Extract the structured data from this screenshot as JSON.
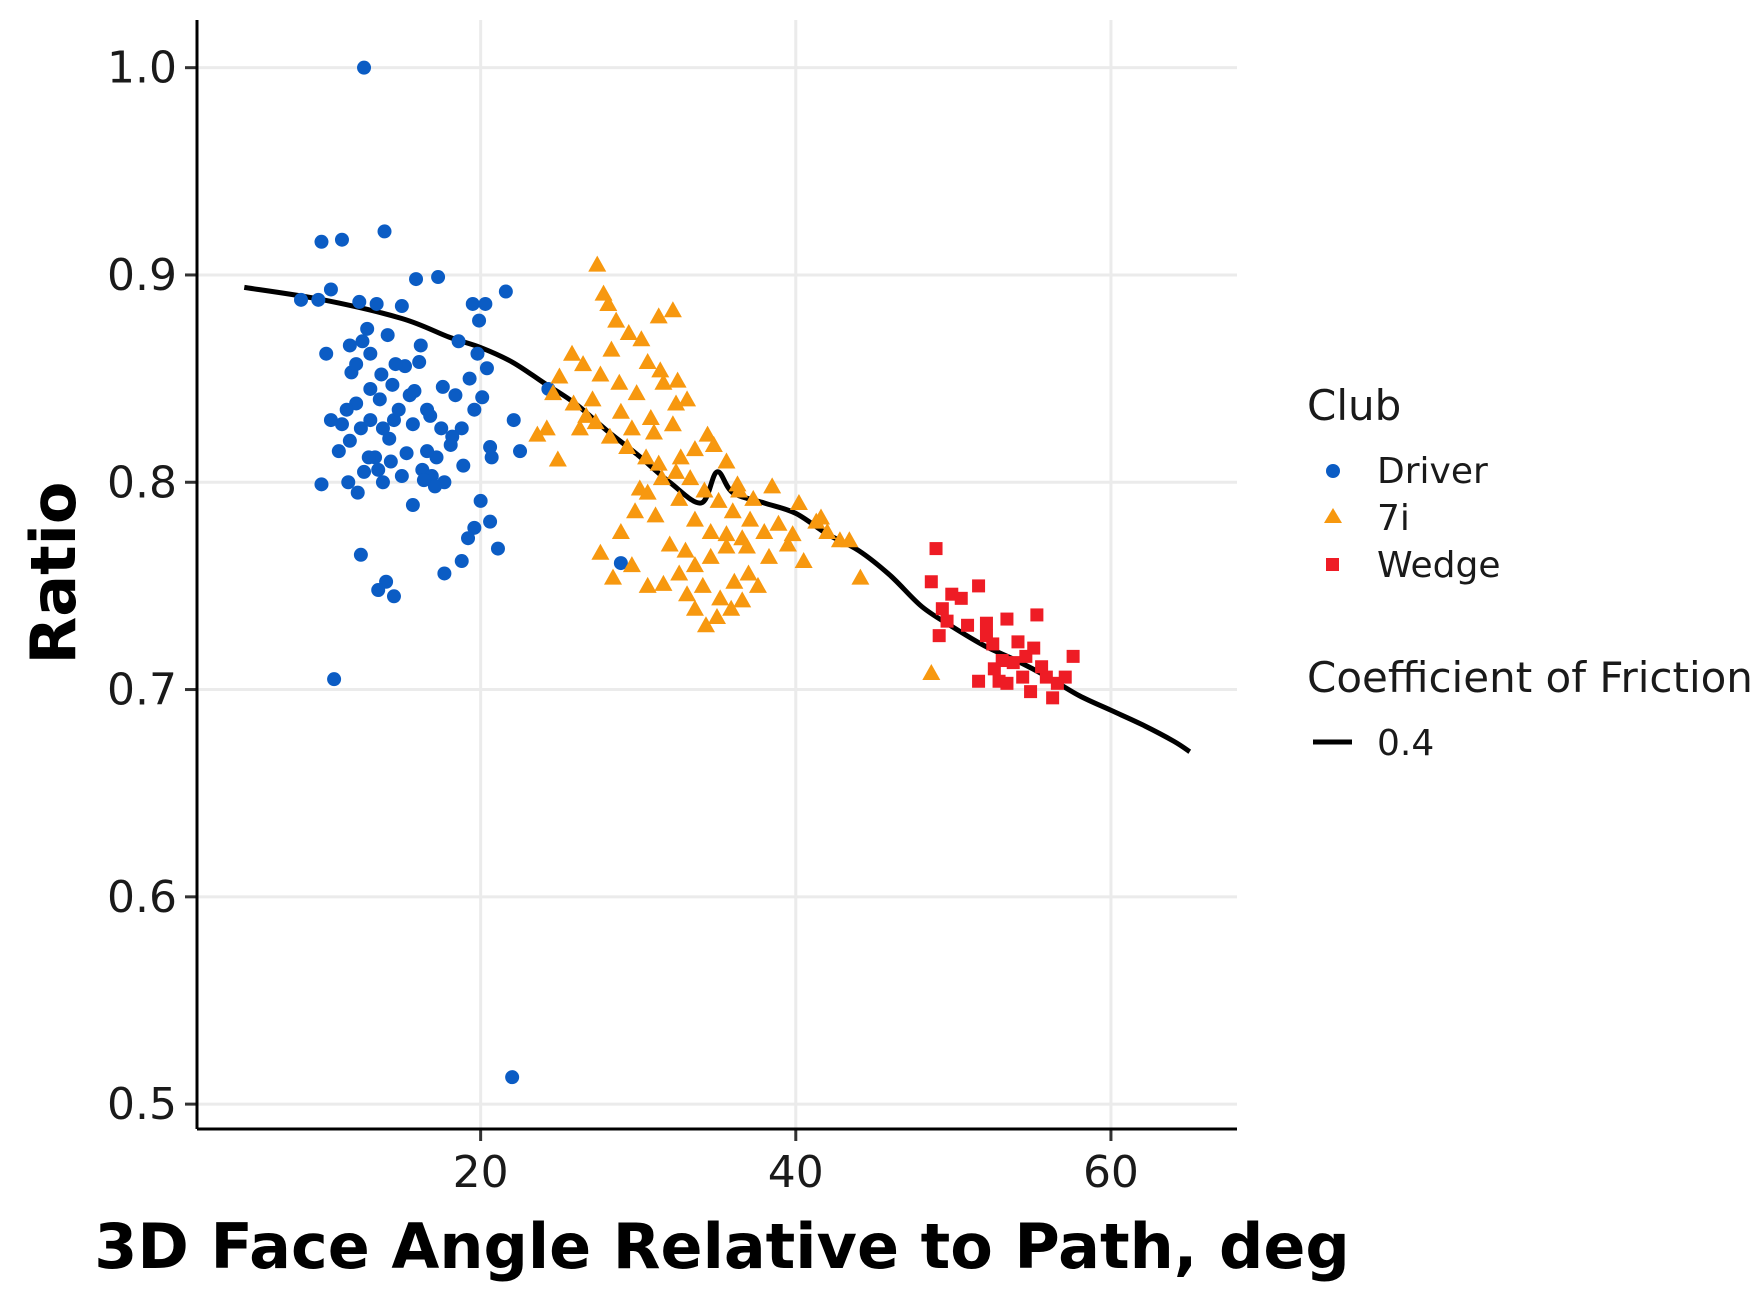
{
  "chart_data": {
    "type": "scatter",
    "title": "",
    "xlabel": "3D Face Angle Relative to Path, deg",
    "ylabel": "Ratio",
    "xlim": [
      2,
      68
    ],
    "ylim": [
      0.488,
      1.023
    ],
    "x_ticks": [
      20,
      40,
      60
    ],
    "x_tick_labels": [
      "20",
      "40",
      "60"
    ],
    "y_ticks": [
      0.5,
      0.6,
      0.7,
      0.8,
      0.9,
      1.0
    ],
    "y_tick_labels": [
      "0.5",
      "0.6",
      "0.7",
      "0.8",
      "0.9",
      "1.0"
    ],
    "grid": true,
    "legend_position": "right",
    "legend": {
      "club_title": "Club",
      "club_entries": [
        "Driver",
        "7i",
        "Wedge"
      ],
      "line_title": "Coefficient of Friction",
      "line_entries": [
        "0.4"
      ]
    },
    "colors": {
      "Driver": "#0b5cc4",
      "7i": "#f7980f",
      "Wedge": "#ee1c25",
      "line": "#000000"
    },
    "series": [
      {
        "name": "Driver",
        "marker": "circle",
        "points": [
          [
            12.6,
            1.0
          ],
          [
            9.9,
            0.916
          ],
          [
            11.2,
            0.917
          ],
          [
            13.9,
            0.921
          ],
          [
            8.6,
            0.888
          ],
          [
            10.5,
            0.893
          ],
          [
            9.7,
            0.888
          ],
          [
            12.3,
            0.887
          ],
          [
            13.4,
            0.886
          ],
          [
            12.8,
            0.874
          ],
          [
            11.7,
            0.866
          ],
          [
            12.5,
            0.868
          ],
          [
            13.0,
            0.862
          ],
          [
            14.1,
            0.871
          ],
          [
            13.7,
            0.852
          ],
          [
            15.2,
            0.856
          ],
          [
            16.1,
            0.858
          ],
          [
            15.9,
            0.898
          ],
          [
            17.3,
            0.899
          ],
          [
            15.0,
            0.885
          ],
          [
            11.8,
            0.853
          ],
          [
            12.1,
            0.838
          ],
          [
            13.0,
            0.845
          ],
          [
            13.6,
            0.84
          ],
          [
            14.4,
            0.847
          ],
          [
            15.5,
            0.842
          ],
          [
            16.6,
            0.835
          ],
          [
            17.6,
            0.846
          ],
          [
            18.6,
            0.868
          ],
          [
            19.5,
            0.886
          ],
          [
            20.3,
            0.886
          ],
          [
            19.9,
            0.878
          ],
          [
            21.6,
            0.892
          ],
          [
            19.3,
            0.85
          ],
          [
            19.8,
            0.862
          ],
          [
            20.4,
            0.855
          ],
          [
            20.1,
            0.841
          ],
          [
            18.8,
            0.826
          ],
          [
            18.1,
            0.818
          ],
          [
            17.2,
            0.812
          ],
          [
            16.3,
            0.806
          ],
          [
            15.3,
            0.814
          ],
          [
            14.2,
            0.821
          ],
          [
            13.3,
            0.812
          ],
          [
            12.6,
            0.805
          ],
          [
            11.7,
            0.82
          ],
          [
            11.2,
            0.828
          ],
          [
            10.5,
            0.83
          ],
          [
            11.5,
            0.835
          ],
          [
            12.4,
            0.826
          ],
          [
            13.8,
            0.826
          ],
          [
            14.5,
            0.83
          ],
          [
            15.7,
            0.828
          ],
          [
            16.8,
            0.832
          ],
          [
            17.5,
            0.826
          ],
          [
            18.2,
            0.822
          ],
          [
            18.9,
            0.808
          ],
          [
            16.9,
            0.803
          ],
          [
            17.7,
            0.8
          ],
          [
            17.1,
            0.798
          ],
          [
            16.4,
            0.801
          ],
          [
            15.7,
            0.789
          ],
          [
            15.0,
            0.803
          ],
          [
            14.3,
            0.81
          ],
          [
            13.5,
            0.806
          ],
          [
            12.9,
            0.812
          ],
          [
            11.6,
            0.8
          ],
          [
            9.9,
            0.799
          ],
          [
            13.8,
            0.8
          ],
          [
            12.2,
            0.795
          ],
          [
            20.0,
            0.791
          ],
          [
            20.6,
            0.781
          ],
          [
            19.6,
            0.778
          ],
          [
            19.2,
            0.773
          ],
          [
            18.8,
            0.762
          ],
          [
            21.1,
            0.768
          ],
          [
            20.7,
            0.812
          ],
          [
            20.6,
            0.817
          ],
          [
            22.1,
            0.83
          ],
          [
            22.5,
            0.815
          ],
          [
            24.3,
            0.845
          ],
          [
            28.9,
            0.761
          ],
          [
            12.4,
            0.765
          ],
          [
            14.0,
            0.752
          ],
          [
            17.7,
            0.756
          ],
          [
            13.5,
            0.748
          ],
          [
            14.5,
            0.745
          ],
          [
            10.7,
            0.705
          ],
          [
            22.0,
            0.513
          ],
          [
            10.2,
            0.862
          ],
          [
            12.1,
            0.857
          ],
          [
            14.6,
            0.857
          ],
          [
            16.2,
            0.866
          ],
          [
            18.4,
            0.842
          ],
          [
            19.6,
            0.835
          ],
          [
            11.0,
            0.815
          ],
          [
            13.0,
            0.83
          ],
          [
            15.8,
            0.844
          ],
          [
            16.6,
            0.815
          ],
          [
            14.8,
            0.835
          ]
        ]
      },
      {
        "name": "7i",
        "marker": "triangle",
        "points": [
          [
            27.4,
            0.905
          ],
          [
            27.8,
            0.891
          ],
          [
            28.1,
            0.886
          ],
          [
            28.6,
            0.878
          ],
          [
            29.4,
            0.872
          ],
          [
            28.3,
            0.864
          ],
          [
            30.2,
            0.869
          ],
          [
            31.3,
            0.88
          ],
          [
            32.2,
            0.883
          ],
          [
            30.6,
            0.858
          ],
          [
            31.4,
            0.854
          ],
          [
            32.5,
            0.849
          ],
          [
            33.1,
            0.84
          ],
          [
            29.9,
            0.843
          ],
          [
            28.8,
            0.848
          ],
          [
            27.6,
            0.852
          ],
          [
            26.5,
            0.857
          ],
          [
            25.8,
            0.862
          ],
          [
            25.0,
            0.851
          ],
          [
            24.6,
            0.843
          ],
          [
            25.9,
            0.838
          ],
          [
            26.7,
            0.832
          ],
          [
            27.3,
            0.829
          ],
          [
            28.2,
            0.822
          ],
          [
            29.3,
            0.817
          ],
          [
            30.5,
            0.812
          ],
          [
            31.3,
            0.809
          ],
          [
            32.4,
            0.805
          ],
          [
            33.3,
            0.802
          ],
          [
            34.2,
            0.796
          ],
          [
            35.1,
            0.791
          ],
          [
            36.0,
            0.786
          ],
          [
            37.1,
            0.782
          ],
          [
            38.0,
            0.776
          ],
          [
            36.6,
            0.773
          ],
          [
            35.6,
            0.769
          ],
          [
            34.6,
            0.764
          ],
          [
            33.6,
            0.76
          ],
          [
            32.6,
            0.756
          ],
          [
            31.6,
            0.751
          ],
          [
            30.6,
            0.75
          ],
          [
            29.6,
            0.76
          ],
          [
            28.4,
            0.754
          ],
          [
            27.6,
            0.766
          ],
          [
            28.9,
            0.776
          ],
          [
            29.8,
            0.786
          ],
          [
            30.6,
            0.795
          ],
          [
            31.5,
            0.802
          ],
          [
            32.7,
            0.812
          ],
          [
            33.6,
            0.816
          ],
          [
            34.4,
            0.823
          ],
          [
            35.6,
            0.81
          ],
          [
            36.3,
            0.799
          ],
          [
            37.3,
            0.792
          ],
          [
            38.5,
            0.798
          ],
          [
            40.2,
            0.79
          ],
          [
            41.3,
            0.781
          ],
          [
            42.0,
            0.776
          ],
          [
            42.8,
            0.772
          ],
          [
            43.4,
            0.772
          ],
          [
            41.6,
            0.783
          ],
          [
            39.5,
            0.77
          ],
          [
            38.3,
            0.764
          ],
          [
            37.0,
            0.756
          ],
          [
            36.6,
            0.743
          ],
          [
            35.9,
            0.739
          ],
          [
            35.0,
            0.735
          ],
          [
            34.3,
            0.731
          ],
          [
            33.6,
            0.739
          ],
          [
            33.1,
            0.746
          ],
          [
            36.1,
            0.752
          ],
          [
            37.6,
            0.75
          ],
          [
            44.1,
            0.754
          ],
          [
            48.6,
            0.708
          ],
          [
            31.6,
            0.848
          ],
          [
            32.4,
            0.838
          ],
          [
            32.2,
            0.828
          ],
          [
            30.8,
            0.831
          ],
          [
            31.0,
            0.824
          ],
          [
            29.6,
            0.826
          ],
          [
            28.9,
            0.834
          ],
          [
            27.1,
            0.84
          ],
          [
            26.3,
            0.826
          ],
          [
            24.2,
            0.826
          ],
          [
            23.6,
            0.823
          ],
          [
            24.9,
            0.811
          ],
          [
            32.6,
            0.792
          ],
          [
            33.6,
            0.782
          ],
          [
            34.6,
            0.776
          ],
          [
            35.6,
            0.775
          ],
          [
            31.1,
            0.784
          ],
          [
            30.1,
            0.797
          ],
          [
            32.0,
            0.77
          ],
          [
            33.0,
            0.767
          ],
          [
            34.1,
            0.75
          ],
          [
            35.2,
            0.744
          ],
          [
            36.9,
            0.769
          ],
          [
            38.9,
            0.78
          ],
          [
            39.8,
            0.775
          ],
          [
            40.5,
            0.762
          ],
          [
            34.8,
            0.818
          ],
          [
            36.4,
            0.796
          ]
        ]
      },
      {
        "name": "Wedge",
        "marker": "square",
        "points": [
          [
            48.9,
            0.768
          ],
          [
            48.6,
            0.752
          ],
          [
            49.3,
            0.739
          ],
          [
            49.9,
            0.746
          ],
          [
            50.5,
            0.744
          ],
          [
            51.6,
            0.75
          ],
          [
            50.9,
            0.731
          ],
          [
            49.6,
            0.733
          ],
          [
            49.1,
            0.726
          ],
          [
            52.1,
            0.732
          ],
          [
            52.5,
            0.722
          ],
          [
            53.4,
            0.734
          ],
          [
            54.1,
            0.723
          ],
          [
            54.6,
            0.716
          ],
          [
            55.3,
            0.736
          ],
          [
            55.9,
            0.706
          ],
          [
            56.3,
            0.696
          ],
          [
            55.6,
            0.711
          ],
          [
            54.9,
            0.699
          ],
          [
            54.4,
            0.706
          ],
          [
            53.8,
            0.713
          ],
          [
            53.1,
            0.714
          ],
          [
            52.9,
            0.704
          ],
          [
            52.6,
            0.71
          ],
          [
            51.6,
            0.704
          ],
          [
            52.1,
            0.726
          ],
          [
            57.1,
            0.706
          ],
          [
            57.6,
            0.716
          ],
          [
            56.6,
            0.703
          ],
          [
            55.1,
            0.72
          ],
          [
            53.4,
            0.703
          ]
        ]
      }
    ],
    "line": {
      "name": "0.4",
      "points": [
        [
          5,
          0.894
        ],
        [
          10,
          0.888
        ],
        [
          15,
          0.879
        ],
        [
          18,
          0.87
        ],
        [
          20,
          0.865
        ],
        [
          22,
          0.858
        ],
        [
          24,
          0.848
        ],
        [
          26,
          0.838
        ],
        [
          28,
          0.825
        ],
        [
          30,
          0.813
        ],
        [
          32,
          0.8
        ],
        [
          34,
          0.79
        ],
        [
          35,
          0.805
        ],
        [
          36,
          0.795
        ],
        [
          38,
          0.79
        ],
        [
          40,
          0.785
        ],
        [
          42,
          0.775
        ],
        [
          44,
          0.767
        ],
        [
          46,
          0.755
        ],
        [
          48,
          0.74
        ],
        [
          50,
          0.73
        ],
        [
          52,
          0.721
        ],
        [
          54,
          0.714
        ],
        [
          56,
          0.706
        ],
        [
          58,
          0.697
        ],
        [
          60,
          0.69
        ],
        [
          62,
          0.683
        ],
        [
          64,
          0.675
        ],
        [
          65,
          0.67
        ]
      ]
    }
  }
}
